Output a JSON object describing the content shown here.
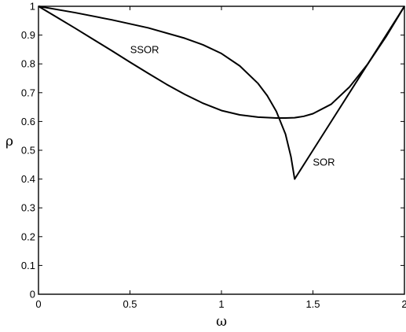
{
  "chart_data": {
    "type": "line",
    "title": "",
    "xlabel": "ω",
    "ylabel": "ρ",
    "xlim": [
      0,
      2
    ],
    "ylim": [
      0,
      1
    ],
    "xticks": [
      0,
      0.5,
      1,
      1.5,
      2
    ],
    "xtick_labels": [
      "0",
      "0.5",
      "1",
      "1.5",
      "2"
    ],
    "yticks": [
      0,
      0.1,
      0.2,
      0.3,
      0.4,
      0.5,
      0.6,
      0.7,
      0.8,
      0.9,
      1
    ],
    "ytick_labels": [
      "0",
      "0.1",
      "0.2",
      "0.3",
      "0.4",
      "0.5",
      "0.6",
      "0.7",
      "0.8",
      "0.9",
      "1"
    ],
    "grid": false,
    "series": [
      {
        "name": "SSOR",
        "x": [
          0,
          0.1,
          0.2,
          0.3,
          0.4,
          0.5,
          0.6,
          0.7,
          0.8,
          0.9,
          1.0,
          1.1,
          1.2,
          1.3,
          1.35,
          1.4,
          1.45,
          1.5,
          1.6,
          1.7,
          1.8,
          1.9,
          2.0
        ],
        "y": [
          1.0,
          0.962,
          0.924,
          0.885,
          0.846,
          0.806,
          0.767,
          0.729,
          0.694,
          0.663,
          0.638,
          0.623,
          0.615,
          0.612,
          0.612,
          0.613,
          0.618,
          0.627,
          0.66,
          0.72,
          0.8,
          0.895,
          1.0
        ]
      },
      {
        "name": "SOR",
        "x": [
          0,
          0.2,
          0.4,
          0.6,
          0.8,
          0.9,
          1.0,
          1.1,
          1.2,
          1.25,
          1.3,
          1.35,
          1.38,
          1.4,
          1.5,
          1.6,
          1.7,
          1.8,
          1.9,
          2.0
        ],
        "y": [
          1.0,
          0.978,
          0.953,
          0.925,
          0.889,
          0.866,
          0.836,
          0.793,
          0.732,
          0.69,
          0.635,
          0.556,
          0.477,
          0.4,
          0.5,
          0.6,
          0.7,
          0.8,
          0.9,
          1.0
        ]
      }
    ],
    "annotations": [
      {
        "text": "SSOR",
        "x": 0.58,
        "y": 0.848
      },
      {
        "text": "SOR",
        "x": 1.56,
        "y": 0.458
      }
    ]
  }
}
